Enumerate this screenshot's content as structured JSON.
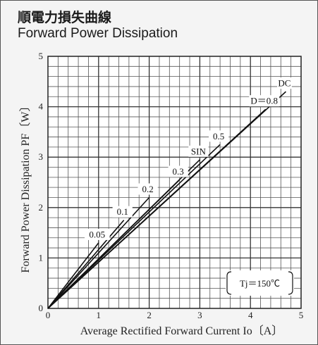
{
  "title_jp": "順電力損失曲線",
  "title_en": "Forward Power Dissipation",
  "chart_data": {
    "type": "line",
    "xlabel": "Average Rectified Forward Current Io〔A〕",
    "ylabel": "Forward Power Dissipation PF〔W〕",
    "xlim": [
      0,
      5
    ],
    "ylim": [
      0,
      5
    ],
    "x_ticks": [
      "0",
      "1",
      "2",
      "3",
      "4",
      "5"
    ],
    "y_ticks": [
      "0",
      "1",
      "2",
      "3",
      "4",
      "5"
    ],
    "grid": true,
    "annotation": "Tj＝150℃",
    "series": [
      {
        "name": "0.05",
        "x": [
          0,
          1.0
        ],
        "y": [
          0,
          1.3
        ]
      },
      {
        "name": "0.1",
        "x": [
          0,
          1.5
        ],
        "y": [
          0,
          1.75
        ]
      },
      {
        "name": "0.2",
        "x": [
          0,
          2.0
        ],
        "y": [
          0,
          2.2
        ]
      },
      {
        "name": "0.3",
        "x": [
          0,
          2.6
        ],
        "y": [
          0,
          2.55
        ]
      },
      {
        "name": "SIN",
        "x": [
          0,
          3.0
        ],
        "y": [
          0,
          2.95
        ]
      },
      {
        "name": "0.5",
        "x": [
          0,
          3.4
        ],
        "y": [
          0,
          3.25
        ]
      },
      {
        "name": "D＝0.8",
        "x": [
          0,
          4.3
        ],
        "y": [
          0,
          3.95
        ]
      },
      {
        "name": "DC",
        "x": [
          0,
          4.7
        ],
        "y": [
          0,
          4.3
        ]
      }
    ]
  }
}
